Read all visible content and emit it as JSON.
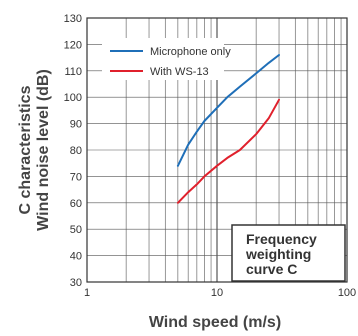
{
  "chart_data": {
    "type": "line",
    "x_scale": "log",
    "xlim": [
      1,
      100
    ],
    "ylim": [
      30,
      130
    ],
    "xlabel": "Wind speed (m/s)",
    "ylabel_line1": "C characteristics",
    "ylabel_line2": "Wind noise level (dB)",
    "x_tick_labels": [
      "1",
      "10",
      "100"
    ],
    "y_ticks": [
      "30",
      "40",
      "50",
      "60",
      "70",
      "80",
      "90",
      "100",
      "110",
      "120",
      "130"
    ],
    "grid": true,
    "legend_position": "top-left",
    "series": [
      {
        "name": "Microphone only",
        "color": "#1f6fb8",
        "x": [
          5,
          6,
          7,
          8,
          10,
          12,
          15,
          20,
          25,
          30
        ],
        "y": [
          74,
          82,
          87,
          91,
          96,
          100,
          104,
          109,
          113,
          116
        ]
      },
      {
        "name": "With WS-13",
        "color": "#e0202c",
        "x": [
          5,
          6,
          7,
          8,
          10,
          12,
          15,
          20,
          25,
          30
        ],
        "y": [
          60,
          64,
          67,
          70,
          74,
          77,
          80,
          86,
          92,
          99
        ]
      }
    ],
    "annotation_box": [
      "Frequency",
      "weighting",
      "curve C"
    ]
  }
}
